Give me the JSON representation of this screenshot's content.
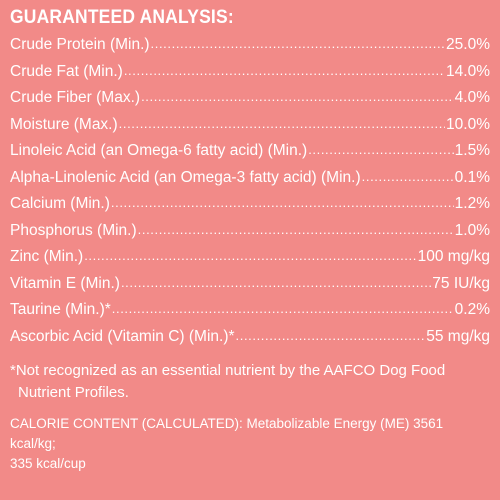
{
  "heading": "GUARANTEED ANALYSIS:",
  "rows": [
    {
      "name": "Crude Protein (Min.)",
      "value": "25.0%"
    },
    {
      "name": "Crude Fat (Min.)",
      "value": "14.0%"
    },
    {
      "name": "Crude Fiber (Max.)",
      "value": "4.0%"
    },
    {
      "name": "Moisture (Max.)",
      "value": "10.0%"
    },
    {
      "name": "Linoleic Acid (an Omega-6 fatty acid) (Min.)",
      "value": "1.5%"
    },
    {
      "name": "Alpha-Linolenic Acid (an Omega-3 fatty acid) (Min.)",
      "value": "0.1%"
    },
    {
      "name": "Calcium (Min.)",
      "value": "1.2%"
    },
    {
      "name": "Phosphorus (Min.)",
      "value": "1.0%"
    },
    {
      "name": "Zinc (Min.)",
      "value": "100 mg/kg"
    },
    {
      "name": "Vitamin E (Min.)",
      "value": "75 IU/kg"
    },
    {
      "name": "Taurine (Min.)*",
      "value": "0.2%"
    },
    {
      "name": "Ascorbic Acid (Vitamin C) (Min.)*",
      "value": "55 mg/kg"
    }
  ],
  "footnote": {
    "line1": "*Not recognized as an essential nutrient by the AAFCO Dog Food",
    "line2": "Nutrient Profiles."
  },
  "calorie": {
    "line1": "CALORIE CONTENT (CALCULATED): Metabolizable Energy (ME) 3561 kcal/kg;",
    "line2": "335 kcal/cup"
  },
  "colors": {
    "background": "#f28a88",
    "text": "#ffffff"
  }
}
